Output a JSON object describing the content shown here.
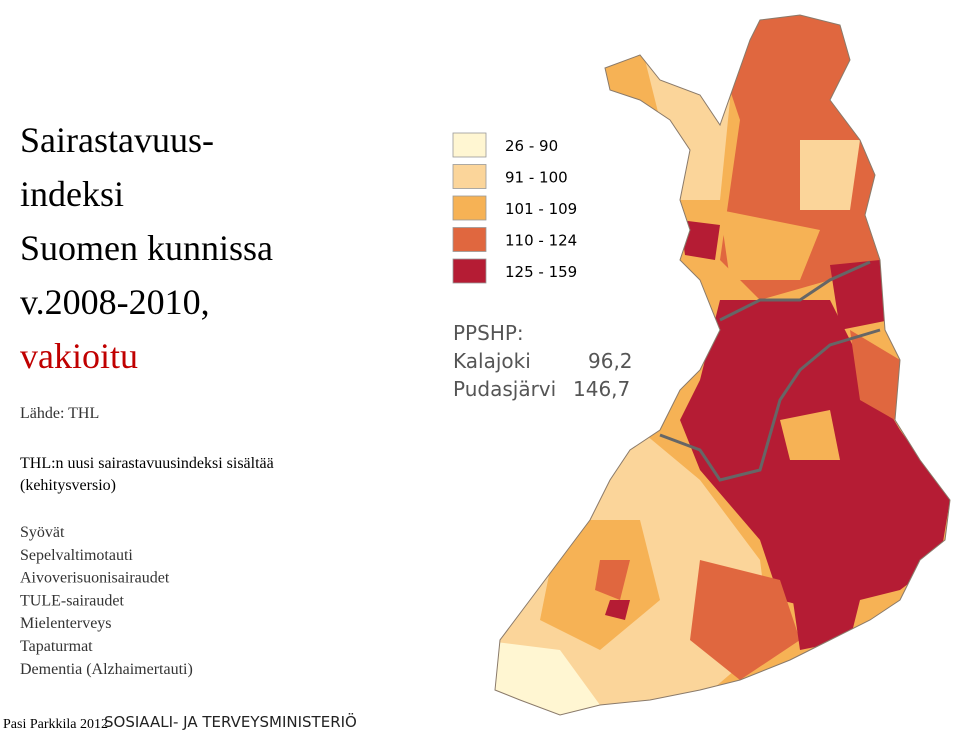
{
  "title": {
    "lines": [
      "Sairastavuus-",
      "indeksi",
      "Suomen kunnissa",
      "v.2008-2010,"
    ],
    "highlight": "vakioitu"
  },
  "source": "Lähde: THL",
  "legend": [
    {
      "label": "26 - 90",
      "color": "#fff6d2"
    },
    {
      "label": "91 - 100",
      "color": "#fbd59a"
    },
    {
      "label": "101 - 109",
      "color": "#f6b255"
    },
    {
      "label": "110 - 124",
      "color": "#e0673f"
    },
    {
      "label": "125 - 159",
      "color": "#b51c34"
    }
  ],
  "district": {
    "heading": "PPSHP:",
    "rows": [
      {
        "name": "Kalajoki",
        "value": "96,2"
      },
      {
        "name": "Pudasjärvi",
        "value": "146,7"
      }
    ]
  },
  "description": [
    "THL:n uusi sairastavuusindeksi sisältää",
    "(kehitysversio)"
  ],
  "components": [
    "Syövät",
    "Sepelvaltimotauti",
    "Aivoverisuonisairaudet",
    "TULE-sairaudet",
    "Mielenterveys",
    "Tapaturmat",
    "Dementia (Alzhaimertauti)"
  ],
  "footer": {
    "author": "Pasi Parkkila 2012",
    "ministry": "SOSIAALI- JA TERVEYSMINISTERIÖ"
  }
}
